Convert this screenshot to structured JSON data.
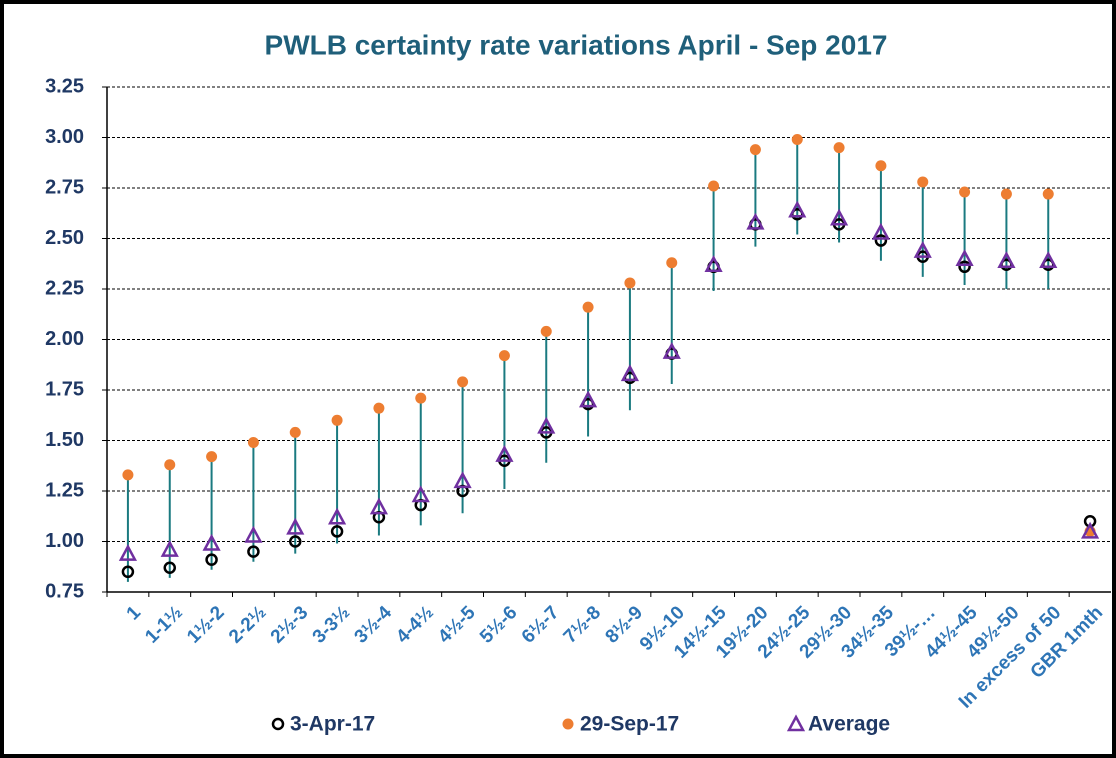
{
  "chart_data": {
    "type": "dot-range",
    "title": "PWLB certainty rate variations April - Sep 2017",
    "categories": [
      "1",
      "1-1½",
      "1½-2",
      "2-2½",
      "2½-3",
      "3-3½",
      "3½-4",
      "4-4½",
      "4½-5",
      "5½-6",
      "6½-7",
      "7½-8",
      "8½-9",
      "9½-10",
      "14½-15",
      "19½-20",
      "24½-25",
      "29½-30",
      "34½-35",
      "39½-…",
      "44½-45",
      "49½-50",
      "In excess of 50",
      "GBR 1mth"
    ],
    "series": [
      {
        "name": "3-Apr-17",
        "color": "#000000",
        "marker": "circle-open",
        "values": [
          0.85,
          0.87,
          0.91,
          0.95,
          1.0,
          1.05,
          1.12,
          1.18,
          1.25,
          1.4,
          1.54,
          1.68,
          1.81,
          1.93,
          2.36,
          2.57,
          2.62,
          2.57,
          2.49,
          2.41,
          2.36,
          2.37,
          2.37,
          1.1
        ]
      },
      {
        "name": "29-Sep-17",
        "color": "#ed7d31",
        "marker": "circle",
        "values": [
          1.33,
          1.38,
          1.42,
          1.49,
          1.54,
          1.6,
          1.66,
          1.71,
          1.79,
          1.92,
          2.04,
          2.16,
          2.28,
          2.38,
          2.76,
          2.94,
          2.99,
          2.95,
          2.86,
          2.78,
          2.73,
          2.72,
          2.72,
          1.05
        ]
      },
      {
        "name": "Average",
        "color": "#7030a0",
        "marker": "triangle-open",
        "values": [
          0.94,
          0.96,
          0.99,
          1.03,
          1.07,
          1.12,
          1.17,
          1.23,
          1.3,
          1.43,
          1.57,
          1.7,
          1.83,
          1.94,
          2.37,
          2.58,
          2.64,
          2.6,
          2.53,
          2.44,
          2.4,
          2.39,
          2.39,
          1.05
        ]
      }
    ],
    "range_bars": {
      "color": "#1a7a80",
      "low": [
        0.8,
        0.82,
        0.86,
        0.9,
        0.94,
        0.99,
        1.03,
        1.08,
        1.14,
        1.26,
        1.39,
        1.52,
        1.65,
        1.78,
        2.24,
        2.46,
        2.52,
        2.48,
        2.39,
        2.31,
        2.27,
        2.25,
        2.25,
        null
      ],
      "high": [
        1.33,
        1.38,
        1.42,
        1.49,
        1.54,
        1.6,
        1.66,
        1.71,
        1.79,
        1.92,
        2.04,
        2.16,
        2.28,
        2.38,
        2.76,
        2.94,
        2.99,
        2.95,
        2.86,
        2.78,
        2.73,
        2.72,
        2.72,
        null
      ]
    },
    "ylim": [
      0.75,
      3.25
    ],
    "yticks": [
      0.75,
      {
        "value": 1,
        "label": "1.00"
      },
      1.25,
      {
        "value": 1.5,
        "label": "1.50"
      },
      1.75,
      {
        "value": 2,
        "label": "2.00"
      },
      2.25,
      {
        "value": 2.5,
        "label": "2.50"
      },
      2.75,
      {
        "value": 3,
        "label": "3.00"
      },
      3.25
    ],
    "grid": true
  }
}
